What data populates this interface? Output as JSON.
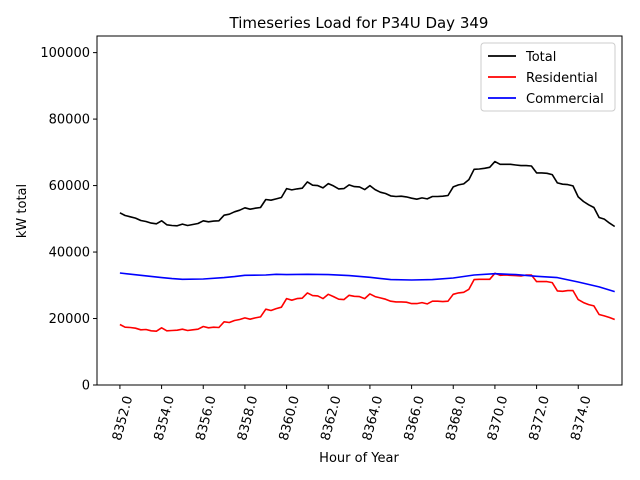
{
  "chart_data": {
    "type": "line",
    "title": "Timeseries Load for P34U   Day 349",
    "xlabel": "Hour of Year",
    "ylabel": "kW total",
    "xlim": [
      8350.9,
      8376.1
    ],
    "ylim": [
      0,
      105000
    ],
    "xticks": [
      8352,
      8354,
      8356,
      8358,
      8360,
      8362,
      8364,
      8366,
      8368,
      8370,
      8372,
      8374
    ],
    "xtick_labels": [
      "8352.0",
      "8354.0",
      "8356.0",
      "8358.0",
      "8360.0",
      "8362.0",
      "8364.0",
      "8366.0",
      "8368.0",
      "8370.0",
      "8372.0",
      "8374.0"
    ],
    "yticks": [
      0,
      20000,
      40000,
      60000,
      80000,
      100000
    ],
    "ytick_labels": [
      "0",
      "20000",
      "40000",
      "60000",
      "80000",
      "100000"
    ],
    "legend_position": "top-right",
    "series": [
      {
        "name": "Total",
        "color": "#000000",
        "x": [
          8352,
          8352.25,
          8352.5,
          8352.75,
          8353,
          8353.25,
          8353.5,
          8353.75,
          8354,
          8354.25,
          8354.5,
          8354.75,
          8355,
          8355.25,
          8355.5,
          8355.75,
          8356,
          8356.25,
          8356.5,
          8356.75,
          8357,
          8357.25,
          8357.5,
          8357.75,
          8358,
          8358.25,
          8358.5,
          8358.75,
          8359,
          8359.25,
          8359.5,
          8359.75,
          8360,
          8360.25,
          8360.5,
          8360.75,
          8361,
          8361.25,
          8361.5,
          8361.75,
          8362,
          8362.25,
          8362.5,
          8362.75,
          8363,
          8363.25,
          8363.5,
          8363.75,
          8364,
          8364.25,
          8364.5,
          8364.75,
          8365,
          8365.25,
          8365.5,
          8365.75,
          8366,
          8366.25,
          8366.5,
          8366.75,
          8367,
          8367.25,
          8367.5,
          8367.75,
          8368,
          8368.25,
          8368.5,
          8368.75,
          8369,
          8369.25,
          8369.5,
          8369.75,
          8370,
          8370.25,
          8370.5,
          8370.75,
          8371,
          8371.25,
          8371.5,
          8371.75,
          8372,
          8372.25,
          8372.5,
          8372.75,
          8373,
          8373.25,
          8373.5,
          8373.75,
          8374,
          8374.25,
          8374.5,
          8374.75,
          8375,
          8375.25,
          8375.5,
          8375.75
        ],
        "values": [
          51800,
          51000,
          50600,
          50200,
          49500,
          49200,
          48700,
          48500,
          49400,
          48200,
          48000,
          47900,
          48400,
          48000,
          48300,
          48600,
          49400,
          49100,
          49300,
          49400,
          51100,
          51400,
          52100,
          52600,
          53300,
          52900,
          53200,
          53400,
          55800,
          55600,
          56000,
          56400,
          59100,
          58700,
          59000,
          59200,
          61100,
          60100,
          60000,
          59300,
          60600,
          59900,
          59000,
          59100,
          60200,
          59700,
          59600,
          58800,
          60000,
          58800,
          58000,
          57600,
          56900,
          56700,
          56800,
          56600,
          56200,
          55900,
          56300,
          56000,
          56700,
          56700,
          56800,
          57000,
          59600,
          60200,
          60500,
          61800,
          64900,
          65000,
          65200,
          65500,
          67200,
          66400,
          66400,
          66400,
          66200,
          66000,
          66000,
          65900,
          63800,
          63800,
          63700,
          63300,
          60800,
          60400,
          60300,
          59900,
          56600,
          55200,
          54200,
          53400,
          50400,
          49900,
          48700,
          47700
        ]
      },
      {
        "name": "Residential",
        "color": "#ff0000",
        "x": [
          8352,
          8352.25,
          8352.5,
          8352.75,
          8353,
          8353.25,
          8353.5,
          8353.75,
          8354,
          8354.25,
          8354.5,
          8354.75,
          8355,
          8355.25,
          8355.5,
          8355.75,
          8356,
          8356.25,
          8356.5,
          8356.75,
          8357,
          8357.25,
          8357.5,
          8357.75,
          8358,
          8358.25,
          8358.5,
          8358.75,
          8359,
          8359.25,
          8359.5,
          8359.75,
          8360,
          8360.25,
          8360.5,
          8360.75,
          8361,
          8361.25,
          8361.5,
          8361.75,
          8362,
          8362.25,
          8362.5,
          8362.75,
          8363,
          8363.25,
          8363.5,
          8363.75,
          8364,
          8364.25,
          8364.5,
          8364.75,
          8365,
          8365.25,
          8365.5,
          8365.75,
          8366,
          8366.25,
          8366.5,
          8366.75,
          8367,
          8367.25,
          8367.5,
          8367.75,
          8368,
          8368.25,
          8368.5,
          8368.75,
          8369,
          8369.25,
          8369.5,
          8369.75,
          8370,
          8370.25,
          8370.5,
          8370.75,
          8371,
          8371.25,
          8371.5,
          8371.75,
          8372,
          8372.25,
          8372.5,
          8372.75,
          8373,
          8373.25,
          8373.5,
          8373.75,
          8374,
          8374.25,
          8374.5,
          8374.75,
          8375,
          8375.25,
          8375.5,
          8375.75
        ],
        "values": [
          18200,
          17400,
          17300,
          17100,
          16600,
          16700,
          16300,
          16200,
          17200,
          16300,
          16400,
          16500,
          16800,
          16400,
          16600,
          16800,
          17600,
          17200,
          17400,
          17300,
          19000,
          18800,
          19400,
          19700,
          20200,
          19800,
          20200,
          20500,
          22800,
          22400,
          23000,
          23400,
          26000,
          25500,
          26000,
          26100,
          27700,
          26900,
          26800,
          26000,
          27300,
          26600,
          25800,
          25700,
          27000,
          26700,
          26600,
          26000,
          27400,
          26600,
          26200,
          25800,
          25200,
          25000,
          25000,
          24900,
          24500,
          24500,
          24800,
          24400,
          25200,
          25200,
          25100,
          25200,
          27300,
          27700,
          27900,
          28800,
          31700,
          31800,
          31800,
          31800,
          33600,
          33000,
          33100,
          33000,
          32900,
          32800,
          33100,
          33100,
          31100,
          31100,
          31100,
          30800,
          28300,
          28200,
          28400,
          28400,
          25700,
          24800,
          24200,
          23800,
          21200,
          20800,
          20300,
          19700
        ]
      },
      {
        "name": "Commercial",
        "color": "#0000ff",
        "x": [
          8352,
          8353,
          8354,
          8354.5,
          8355,
          8356,
          8357,
          8357.5,
          8358,
          8359,
          8359.5,
          8360,
          8361,
          8362,
          8363,
          8364,
          8365,
          8366,
          8367,
          8368,
          8369,
          8370,
          8371,
          8372,
          8373,
          8374,
          8375,
          8375.75
        ],
        "values": [
          33700,
          33000,
          32300,
          32000,
          31800,
          31900,
          32300,
          32600,
          33000,
          33100,
          33300,
          33200,
          33300,
          33200,
          32900,
          32400,
          31700,
          31600,
          31700,
          32200,
          33100,
          33500,
          33200,
          32700,
          32300,
          31000,
          29500,
          28100
        ]
      }
    ]
  }
}
